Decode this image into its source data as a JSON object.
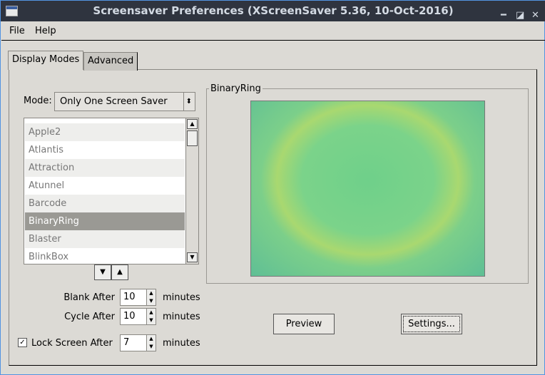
{
  "window": {
    "title": "Screensaver Preferences  (XScreenSaver 5.36, 10-Oct-2016)",
    "icons": [
      "minimize-icon",
      "maximize-icon",
      "close-icon"
    ]
  },
  "menu": {
    "file": "File",
    "help": "Help"
  },
  "tabs": [
    {
      "label": "Display Modes",
      "active": true
    },
    {
      "label": "Advanced",
      "active": false
    }
  ],
  "mode": {
    "label": "Mode:",
    "value": "Only One Screen Saver"
  },
  "savers": [
    {
      "name": "Apple2"
    },
    {
      "name": "Atlantis"
    },
    {
      "name": "Attraction"
    },
    {
      "name": "Atunnel"
    },
    {
      "name": "Barcode"
    },
    {
      "name": "BinaryRing",
      "selected": true
    },
    {
      "name": "Blaster"
    },
    {
      "name": "BlinkBox"
    }
  ],
  "preview_title": "BinaryRing",
  "blank": {
    "label": "Blank After",
    "value": "10",
    "unit": "minutes"
  },
  "cycle": {
    "label": "Cycle After",
    "value": "10",
    "unit": "minutes"
  },
  "lock": {
    "label": "Lock Screen After",
    "value": "7",
    "unit": "minutes",
    "checked": true
  },
  "buttons": {
    "preview": "Preview",
    "settings": "Settings..."
  }
}
